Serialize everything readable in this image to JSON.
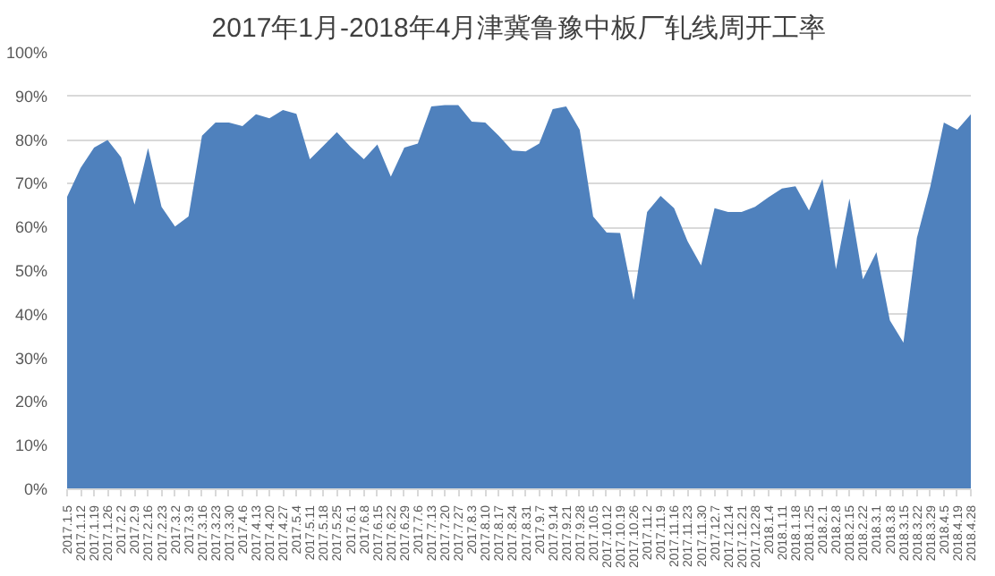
{
  "chart_data": {
    "type": "area",
    "title": "2017年1月-2018年4月津冀鲁豫中板厂轧线周开工率",
    "categories": [
      "2017.1.5",
      "2017.1.12",
      "2017.1.19",
      "2017.1.26",
      "2017.2.2",
      "2017.2.9",
      "2017.2.16",
      "2017.2.23",
      "2017.3.2",
      "2017.3.9",
      "2017.3.16",
      "2017.3.23",
      "2017.3.30",
      "2017.4.6",
      "2017.4.13",
      "2017.4.20",
      "2017.4.27",
      "2017.5.4",
      "2017.5.11",
      "2017.5.18",
      "2017.5.25",
      "2017.6.1",
      "2017.6.8",
      "2017.6.15",
      "2017.6.22",
      "2017.6.29",
      "2017.7.6",
      "2017.7.13",
      "2017.7.20",
      "2017.7.27",
      "2017.8.3",
      "2017.8.10",
      "2017.8.17",
      "2017.8.24",
      "2017.8.31",
      "2017.9.7",
      "2017.9.14",
      "2017.9.21",
      "2017.9.28",
      "2017.10.5",
      "2017.10.12",
      "2017.10.19",
      "2017.10.26",
      "2017.11.2",
      "2017.11.9",
      "2017.11.16",
      "2017.11.23",
      "2017.11.30",
      "2017.12.7",
      "2017.12.14",
      "2017.12.21",
      "2017.12.28",
      "2018.1.4",
      "2018.1.11",
      "2018.1.18",
      "2018.1.25",
      "2018.2.1",
      "2018.2.8",
      "2018.2.15",
      "2018.2.22",
      "2018.3.1",
      "2018.3.8",
      "2018.3.15",
      "2018.3.22",
      "2018.3.29",
      "2018.4.5",
      "2018.4.19",
      "2018.4.28"
    ],
    "series": [
      {
        "color": "#4f81bd",
        "values": [
          67,
          73.6,
          78.3,
          80,
          76.1,
          65.2,
          78.2,
          64.7,
          60.2,
          62.5,
          81,
          84,
          84,
          83.2,
          85.9,
          85,
          86.9,
          86,
          75.6,
          78.7,
          81.8,
          78.5,
          75.6,
          79,
          71.6,
          78.3,
          79.2,
          87.7,
          88,
          88,
          84.2,
          84,
          81,
          77.6,
          77.4,
          79.2,
          87.1,
          87.7,
          82.4,
          62.5,
          58.8,
          58.7,
          43.4,
          63.5,
          67.2,
          64.4,
          56.8,
          51.3,
          64.4,
          63.5,
          63.5,
          64.7,
          66.9,
          68.9,
          69.4,
          63.9,
          71.1,
          50.4,
          66.6,
          48.1,
          54.3,
          38.7,
          33.6,
          57.6,
          69.4,
          84,
          82.4,
          85.9
        ]
      }
    ],
    "ylim": [
      0,
      100
    ],
    "yticks": [
      {
        "value": 0,
        "label": "0%"
      },
      {
        "value": 10,
        "label": "10%"
      },
      {
        "value": 20,
        "label": "20%"
      },
      {
        "value": 30,
        "label": "30%"
      },
      {
        "value": 40,
        "label": "40%"
      },
      {
        "value": 50,
        "label": "50%"
      },
      {
        "value": 60,
        "label": "60%"
      },
      {
        "value": 70,
        "label": "70%"
      },
      {
        "value": 80,
        "label": "80%"
      },
      {
        "value": 90,
        "label": "90%"
      },
      {
        "value": 100,
        "label": "100%"
      }
    ],
    "grid": "y"
  }
}
